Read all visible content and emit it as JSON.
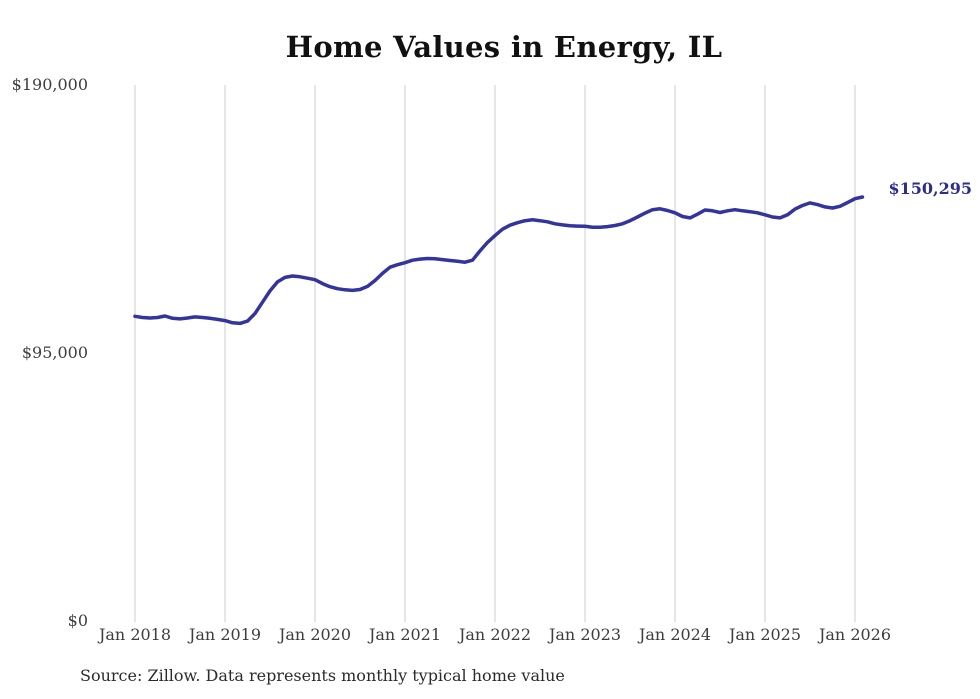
{
  "header": {
    "title": "Home Values in Energy, IL"
  },
  "chart_data": {
    "type": "line",
    "title": "Home Values in Energy, IL",
    "x_tick_labels": [
      "Jan 2018",
      "Jan 2019",
      "Jan 2020",
      "Jan 2021",
      "Jan 2022",
      "Jan 2023",
      "Jan 2024",
      "Jan 2025",
      "Jan 2026"
    ],
    "y_ticks": [
      {
        "label": "$190,000",
        "value": 190000
      },
      {
        "label": "$95,000",
        "value": 95000
      },
      {
        "label": "$0",
        "value": 0
      }
    ],
    "ylim": [
      0,
      190000
    ],
    "x_range": [
      "Jan 2018",
      "Feb 2026"
    ],
    "grid": "vertical-only",
    "legend": "none",
    "line_color": "#34349e",
    "gridline_color": "#cccccc",
    "end_label": "$150,295",
    "final_value": 150295,
    "series": [
      {
        "name": "Typical home value",
        "cadence": "monthly",
        "start": "Jan 2018",
        "monthly_values": [
          108000,
          107600,
          107400,
          107600,
          108100,
          107300,
          107100,
          107400,
          107800,
          107600,
          107300,
          106900,
          106500,
          105700,
          105500,
          106300,
          109000,
          113000,
          117000,
          120200,
          121800,
          122300,
          122000,
          121500,
          121000,
          119600,
          118500,
          117800,
          117400,
          117200,
          117500,
          118600,
          120700,
          123200,
          125400,
          126300,
          127000,
          127900,
          128300,
          128500,
          128400,
          128100,
          127800,
          127500,
          127200,
          127900,
          131200,
          134200,
          136600,
          138900,
          140300,
          141200,
          141900,
          142200,
          141900,
          141500,
          140800,
          140400,
          140100,
          140000,
          139900,
          139600,
          139600,
          139800,
          140200,
          140800,
          141900,
          143200,
          144600,
          145800,
          146100,
          145500,
          144700,
          143400,
          142900,
          144200,
          145700,
          145400,
          144800,
          145400,
          145800,
          145400,
          145100,
          144700,
          144000,
          143200,
          142900,
          144000,
          146000,
          147300,
          148200,
          147600,
          146800,
          146400,
          147000,
          148300,
          149700,
          150295
        ]
      }
    ]
  },
  "footer": {
    "source": "Source: Zillow. Data represents monthly typical home value"
  }
}
